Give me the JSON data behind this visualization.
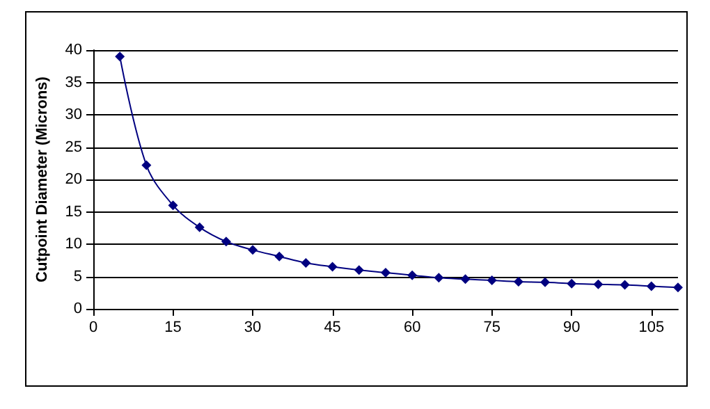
{
  "chart_data": {
    "type": "line",
    "ylabel": "Cutpoint Diameter (Microns)",
    "x": [
      5,
      10,
      15,
      20,
      25,
      30,
      35,
      40,
      45,
      50,
      55,
      60,
      65,
      70,
      75,
      80,
      85,
      90,
      95,
      100,
      105,
      110
    ],
    "series": [
      {
        "color": "#000080",
        "values": [
          39,
          22.2,
          16,
          12.6,
          10.4,
          9.1,
          8.1,
          7.1,
          6.5,
          6.0,
          5.6,
          5.2,
          4.8,
          4.6,
          4.4,
          4.2,
          4.1,
          3.9,
          3.8,
          3.7,
          3.5,
          3.3
        ]
      }
    ],
    "xlim": [
      0,
      110
    ],
    "xticks": [
      0,
      15,
      30,
      45,
      60,
      75,
      90,
      105
    ],
    "ylim": [
      0,
      40
    ],
    "yticks": [
      0,
      5,
      10,
      15,
      20,
      25,
      30,
      35,
      40
    ],
    "grid": "y",
    "marker": "diamond"
  }
}
